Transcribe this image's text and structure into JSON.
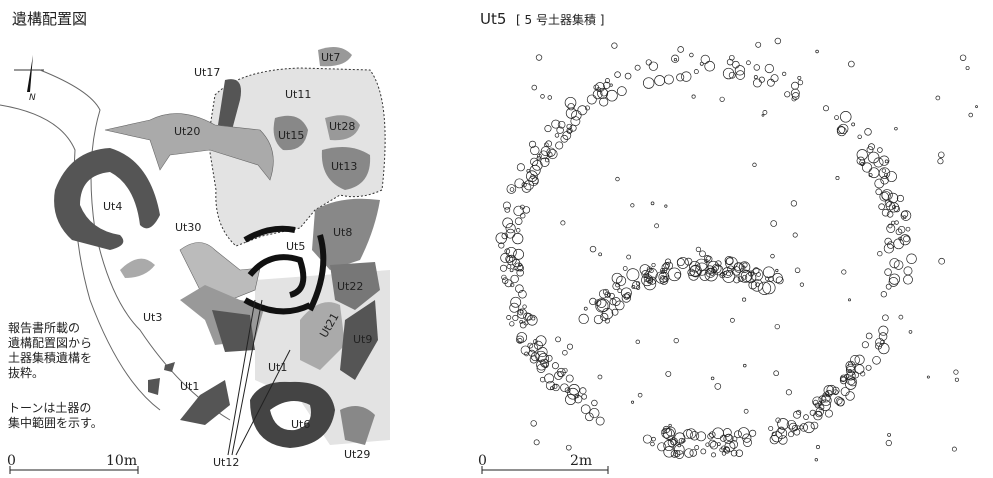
{
  "left_panel": {
    "title": "遺構配置図",
    "north": "N",
    "labels": [
      "Ut17",
      "Ut7",
      "Ut11",
      "Ut20",
      "Ut15",
      "Ut28",
      "Ut13",
      "Ut4",
      "Ut30",
      "Ut5",
      "Ut8",
      "Ut22",
      "Ut3",
      "Ut21",
      "Ut9",
      "Ut1",
      "Ut1",
      "Ut6",
      "Ut12",
      "Ut29"
    ],
    "note": [
      "報告書所載の",
      "遺構配置図から",
      "土器集積遺構を",
      "抜粋。",
      "トーンは土器の",
      "集中範囲を示す。"
    ],
    "scale": [
      "0",
      "10m"
    ]
  },
  "right_panel": {
    "title": "Ut5",
    "subtitle": "[ 5 号土器集積 ]",
    "scale": [
      "0",
      "2m"
    ]
  }
}
